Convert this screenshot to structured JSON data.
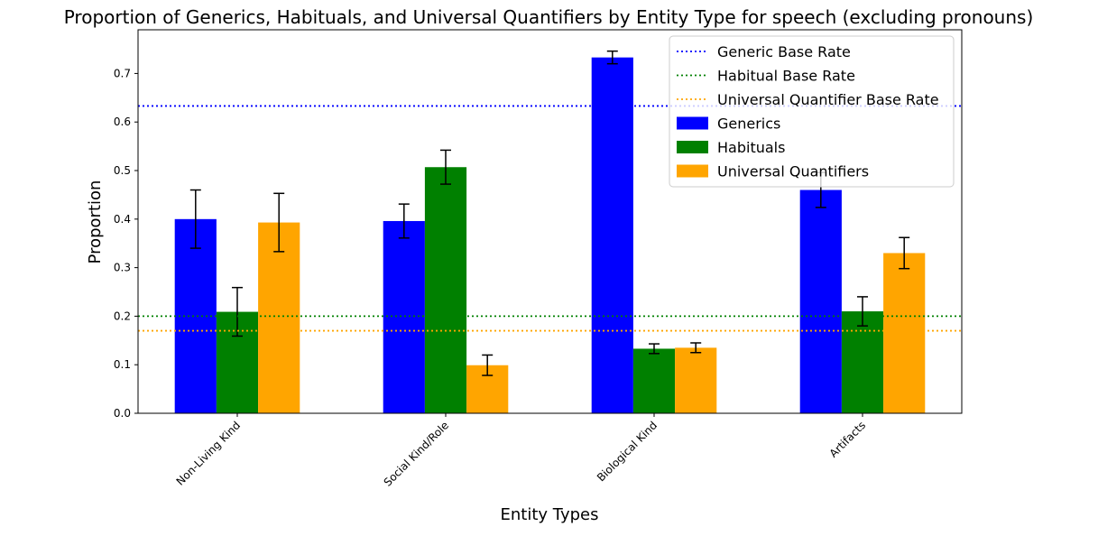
{
  "chart_data": {
    "type": "bar",
    "title": "Proportion of Generics, Habituals, and Universal Quantifiers by Entity Type for speech (excluding pronouns)",
    "xlabel": "Entity Types",
    "ylabel": "Proportion",
    "ylim": [
      0,
      0.79
    ],
    "yticks": [
      0.0,
      0.1,
      0.2,
      0.3,
      0.4,
      0.5,
      0.6,
      0.7
    ],
    "ytick_labels": [
      "0.0",
      "0.1",
      "0.2",
      "0.3",
      "0.4",
      "0.5",
      "0.6",
      "0.7"
    ],
    "categories": [
      "Non-Living Kind",
      "Social Kind/Role",
      "Biological Kind",
      "Artifacts"
    ],
    "xtick_rotation_deg": 45,
    "grid": false,
    "legend_position": "top-right",
    "series": [
      {
        "name": "Generics",
        "color": "#0000ff",
        "values": [
          0.4,
          0.396,
          0.733,
          0.46
        ],
        "errors": [
          0.06,
          0.035,
          0.013,
          0.036
        ]
      },
      {
        "name": "Habituals",
        "color": "#008000",
        "values": [
          0.209,
          0.507,
          0.133,
          0.21
        ],
        "errors": [
          0.05,
          0.035,
          0.01,
          0.03
        ]
      },
      {
        "name": "Universal Quantifiers",
        "color": "#ffa500",
        "values": [
          0.393,
          0.099,
          0.135,
          0.33
        ],
        "errors": [
          0.06,
          0.021,
          0.01,
          0.032
        ]
      }
    ],
    "base_rates": [
      {
        "name": "Generic Base Rate",
        "color": "#0000ff",
        "value": 0.633
      },
      {
        "name": "Habitual Base Rate",
        "color": "#008000",
        "value": 0.2
      },
      {
        "name": "Universal Quantifier Base Rate",
        "color": "#ffa500",
        "value": 0.17
      }
    ]
  }
}
